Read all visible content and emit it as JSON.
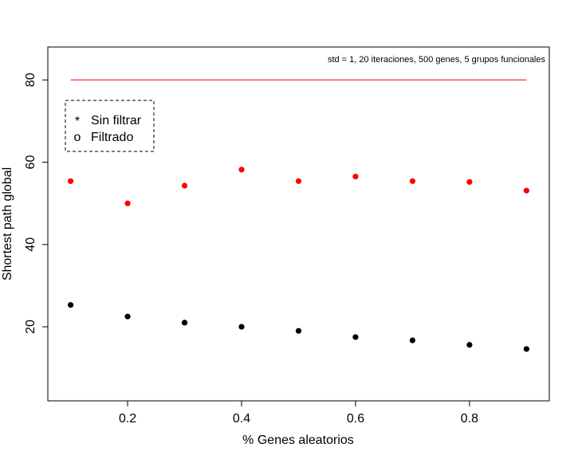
{
  "chart_data": {
    "type": "scatter",
    "annotation": "std = 1, 20 iteraciones, 500 genes, 5 grupos funcionales",
    "xlabel": "% Genes aleatorios",
    "ylabel": "Shortest path global",
    "xlim": [
      0.06,
      0.94
    ],
    "ylim": [
      2,
      88
    ],
    "x_ticks": [
      0.2,
      0.4,
      0.6,
      0.8
    ],
    "x_tick_labels": [
      "0.2",
      "0.4",
      "0.6",
      "0.8"
    ],
    "y_ticks": [
      20,
      40,
      60,
      80
    ],
    "y_tick_labels": [
      "20",
      "40",
      "60",
      "80"
    ],
    "grid": false,
    "legend_position": "top-left",
    "series": [
      {
        "name": "Sin filtrar",
        "legend_symbol": "*",
        "color": "#000000",
        "x": [
          0.1,
          0.2,
          0.3,
          0.4,
          0.5,
          0.6,
          0.7,
          0.8,
          0.9
        ],
        "y": [
          25.3,
          22.5,
          21.0,
          20.0,
          19.0,
          17.5,
          16.7,
          15.6,
          14.6
        ]
      },
      {
        "name": "Filtrado",
        "legend_symbol": "o",
        "color": "#ff0000",
        "x": [
          0.1,
          0.2,
          0.3,
          0.4,
          0.5,
          0.6,
          0.7,
          0.8,
          0.9
        ],
        "y": [
          55.4,
          50.0,
          54.3,
          58.2,
          55.4,
          56.5,
          55.4,
          55.2,
          53.1
        ]
      }
    ],
    "reference_line": {
      "color": "#ff0000",
      "y": 80,
      "x_range": [
        0.1,
        0.9
      ]
    }
  }
}
